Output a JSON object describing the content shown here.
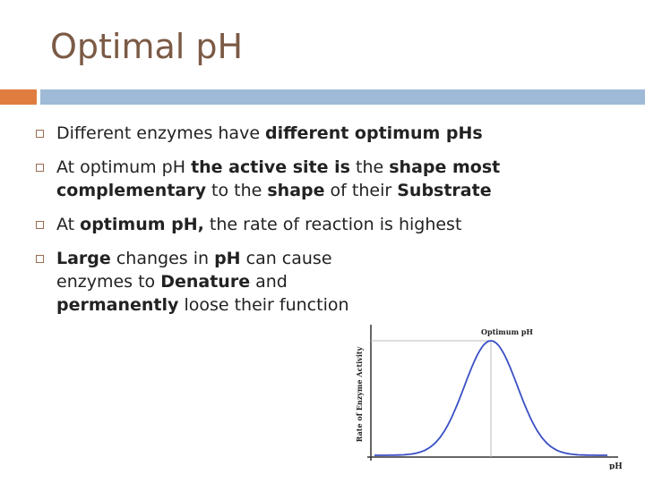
{
  "slide": {
    "title": "Optimal pH",
    "bullets": [
      {
        "parts": [
          {
            "text": "Different enzymes have ",
            "bold": false
          },
          {
            "text": "different optimum pHs",
            "bold": true
          }
        ]
      },
      {
        "parts": [
          {
            "text": "At optimum pH ",
            "bold": false
          },
          {
            "text": "the active site is",
            "bold": true
          },
          {
            "text": " the ",
            "bold": false
          },
          {
            "text": "shape most complementary",
            "bold": true
          },
          {
            "text": " to the ",
            "bold": false
          },
          {
            "text": "shape",
            "bold": true
          },
          {
            "text": " of their ",
            "bold": false
          },
          {
            "text": "Substrate",
            "bold": true
          }
        ]
      },
      {
        "parts": [
          {
            "text": "At ",
            "bold": false
          },
          {
            "text": "optimum pH,",
            "bold": true
          },
          {
            "text": " the rate of reaction is highest",
            "bold": false
          }
        ]
      },
      {
        "parts": [
          {
            "text": "Large",
            "bold": true
          },
          {
            "text": " changes in ",
            "bold": false
          },
          {
            "text": "pH",
            "bold": true
          },
          {
            "text": " can cause enzymes to ",
            "bold": false
          },
          {
            "text": "Denature",
            "bold": true
          },
          {
            "text": " and ",
            "bold": false
          },
          {
            "text": "permanently",
            "bold": true
          },
          {
            "text": " loose their function",
            "bold": false
          }
        ]
      }
    ]
  },
  "chart_data": {
    "type": "line",
    "title": "",
    "xlabel": "pH",
    "ylabel": "Rate of Enzyme Activity",
    "annotation": "Optimum pH",
    "shape": "bell-curve",
    "peak_x_fraction": 0.5,
    "grid": false,
    "legend": "none",
    "colors": {
      "curve": "#3a4fc4",
      "axis": "#333333",
      "guide": "#bbbbbb"
    }
  }
}
